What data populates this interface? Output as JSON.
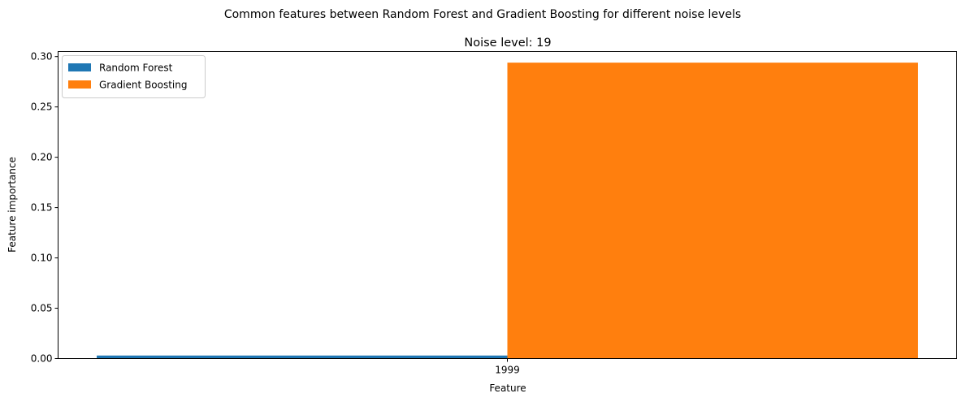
{
  "chart_data": {
    "type": "bar",
    "suptitle": "Common features between Random Forest and Gradient Boosting for different noise levels",
    "title": "Noise level: 19",
    "xlabel": "Feature",
    "ylabel": "Feature importance",
    "categories": [
      "1999"
    ],
    "ylim": [
      0,
      0.305
    ],
    "yticks": [
      0.0,
      0.05,
      0.1,
      0.15,
      0.2,
      0.25,
      0.3
    ],
    "ytick_labels": [
      "0.00",
      "0.05",
      "0.10",
      "0.15",
      "0.20",
      "0.25",
      "0.30"
    ],
    "legend_position": "top-left",
    "series": [
      {
        "name": "Random Forest",
        "values": [
          0.003
        ],
        "color": "#1f77b4"
      },
      {
        "name": "Gradient Boosting",
        "values": [
          0.294
        ],
        "color": "#ff7f0e"
      }
    ]
  }
}
